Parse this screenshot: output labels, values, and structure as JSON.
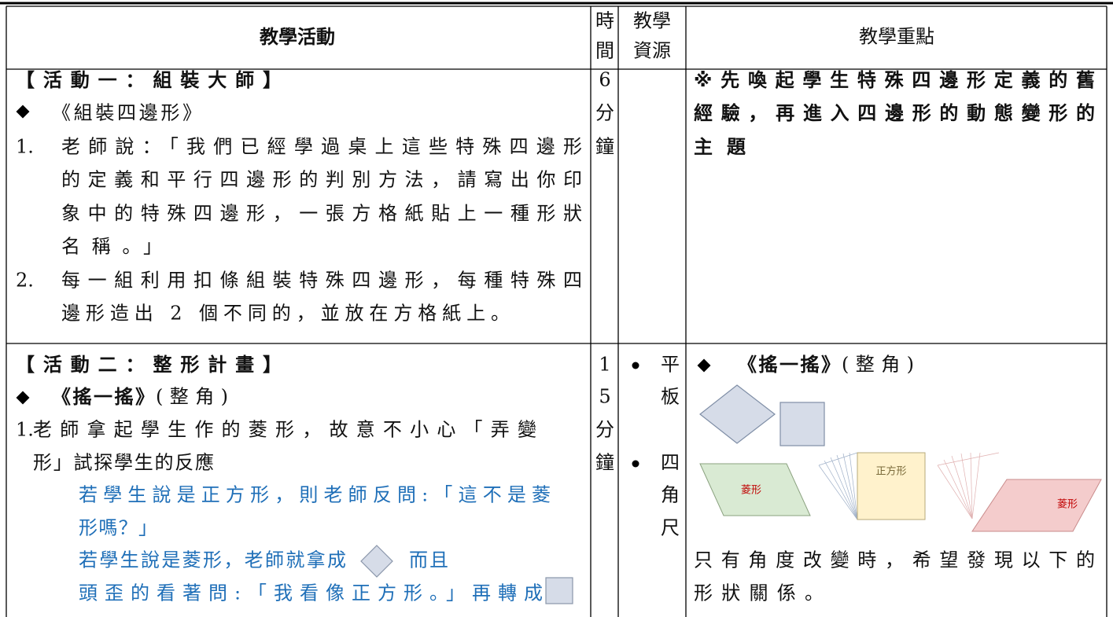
{
  "table": {
    "header": {
      "activity": "教學活動",
      "time": [
        "時",
        "間"
      ],
      "resources": [
        "教學",
        "資源"
      ],
      "focus": "教學重點"
    },
    "rows": [
      {
        "activity": {
          "title": "【活動一：組裝大師】",
          "subtitle": "《組裝四邊形》",
          "steps": [
            {
              "number": "1.",
              "lines": [
                "老師說：「我們已經學過桌上這些特殊四邊形",
                "的定義和平行四邊形的判別方法，請寫出你印",
                "象中的特殊四邊形，一張方格紙貼上一種形狀",
                "名稱。」"
              ]
            },
            {
              "number": "2.",
              "lines": [
                "每一組利用扣條組裝特殊四邊形，每種特殊四",
                "邊形造出 2 個不同的，並放在方格紙上。"
              ]
            }
          ]
        },
        "time": [
          "6",
          "分",
          "鐘"
        ],
        "focus": [
          "※先喚起學生特殊四邊形定義的舊",
          "經驗，再進入四邊形的動態變形的",
          "主題"
        ]
      },
      {
        "activity": {
          "title": "【活動二：整形計畫】",
          "subtitle": "《搖一搖》",
          "subtitle_note": "(整角)",
          "steps": [
            {
              "number": "1.",
              "lines": [
                "老師拿起學生作的菱形，故意不小心「弄變",
                "形」試探學生的反應"
              ],
              "notes": [
                "若學生說是正方形，則老師反問:「這不是菱",
                "形嗎？」",
                "若學生說是菱形，老師就拿成",
                "而且",
                "頭歪的看著問:「我看像正方形。」再轉成"
              ]
            }
          ]
        },
        "time": [
          "1",
          "5",
          "分",
          "鐘"
        ],
        "resources": [
          [
            "平",
            "板"
          ],
          [
            "四",
            "角",
            "尺"
          ]
        ],
        "focus": {
          "heading": "《搖一搖》",
          "heading_note": "(整角)",
          "shape_labels": [
            "菱形",
            "正方形",
            "菱形"
          ],
          "lines": [
            "只有角度改變時，希望發現以下的",
            "形狀關係。"
          ]
        }
      }
    ]
  }
}
